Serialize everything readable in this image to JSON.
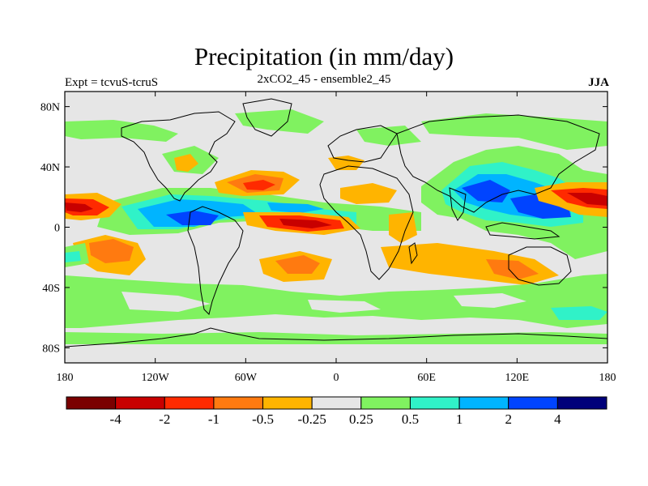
{
  "title": "Precipitation (in mm/day)",
  "subtitle": "2xCO2_45 - ensemble2_45",
  "left_label": "Expt = tcvuS-tcruS",
  "right_label": "JJA",
  "lat_ticks": [
    "80N",
    "40N",
    "0",
    "40S",
    "80S"
  ],
  "lon_ticks": [
    "180",
    "120W",
    "60W",
    "0",
    "60E",
    "120E",
    "180"
  ],
  "colorbar": {
    "colors": [
      "#7a0000",
      "#c80000",
      "#ff2a00",
      "#ff7a10",
      "#ffb400",
      "#e6e6e6",
      "#80f260",
      "#30f2c8",
      "#00b4ff",
      "#0044ff",
      "#00007a"
    ],
    "labels": [
      "-4",
      "-2",
      "-1",
      "-0.5",
      "-0.25",
      "0.25",
      "0.5",
      "1",
      "2",
      "4"
    ]
  },
  "map_colors": {
    "background": "#e6e6e6",
    "coast": "#000000"
  }
}
